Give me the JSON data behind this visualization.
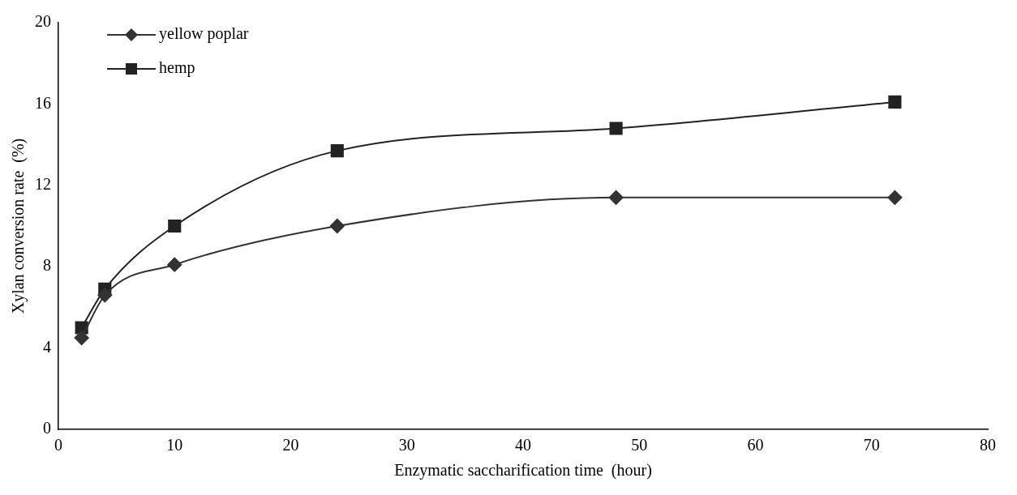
{
  "chart_data": {
    "type": "line",
    "xlabel": "Enzymatic saccharification time  (hour)",
    "ylabel": "Xylan conversion rate  (%)",
    "xlim": [
      0,
      80
    ],
    "xticks": [
      0,
      10,
      20,
      30,
      40,
      50,
      60,
      70,
      80
    ],
    "ylim": [
      0,
      20
    ],
    "yticks": [
      0,
      4,
      8,
      12,
      16,
      20
    ],
    "grid": false,
    "legend": "top left",
    "line_style": "solid",
    "series": [
      {
        "name": "yellow poplar",
        "color": "#333333",
        "marker": "diamond",
        "x": [
          2,
          4,
          10,
          24,
          48,
          72
        ],
        "values": [
          4.5,
          6.6,
          8.1,
          10.0,
          11.4,
          11.4
        ]
      },
      {
        "name": "hemp",
        "color": "#222222",
        "marker": "square",
        "x": [
          2,
          4,
          10,
          24,
          48,
          72
        ],
        "values": [
          5.0,
          6.9,
          10.0,
          13.7,
          14.8,
          16.1
        ]
      }
    ]
  }
}
